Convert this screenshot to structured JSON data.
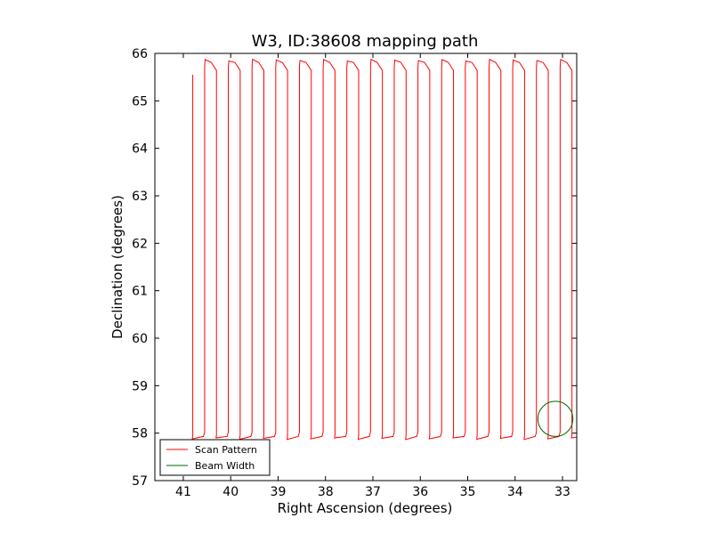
{
  "chart_data": {
    "type": "line",
    "title": "W3, ID:38608 mapping path",
    "xlabel": "Right Ascension (degrees)",
    "ylabel": "Declination (degrees)",
    "xlim": [
      41.6,
      32.7
    ],
    "ylim": [
      57,
      66
    ],
    "x_inverted": true,
    "xticks": [
      41,
      40,
      39,
      38,
      37,
      36,
      35,
      34,
      33
    ],
    "yticks": [
      57,
      58,
      59,
      60,
      61,
      62,
      63,
      64,
      65,
      66
    ],
    "grid": false,
    "legend_position": "lower-left",
    "scan_start": {
      "ra": 40.8,
      "dec": 65.55
    },
    "scan_ra_start": 40.8,
    "scan_ra_step": -0.5,
    "scan_leg_count": 33,
    "scan_dec_top": 65.86,
    "scan_dec_bottom": 57.88,
    "series": [
      {
        "name": "Scan Pattern",
        "color": "#ff0000"
      },
      {
        "name": "Beam Width",
        "color": "#006400",
        "center": {
          "ra": 33.15,
          "dec": 58.3
        },
        "radius_deg": 0.37
      }
    ]
  }
}
